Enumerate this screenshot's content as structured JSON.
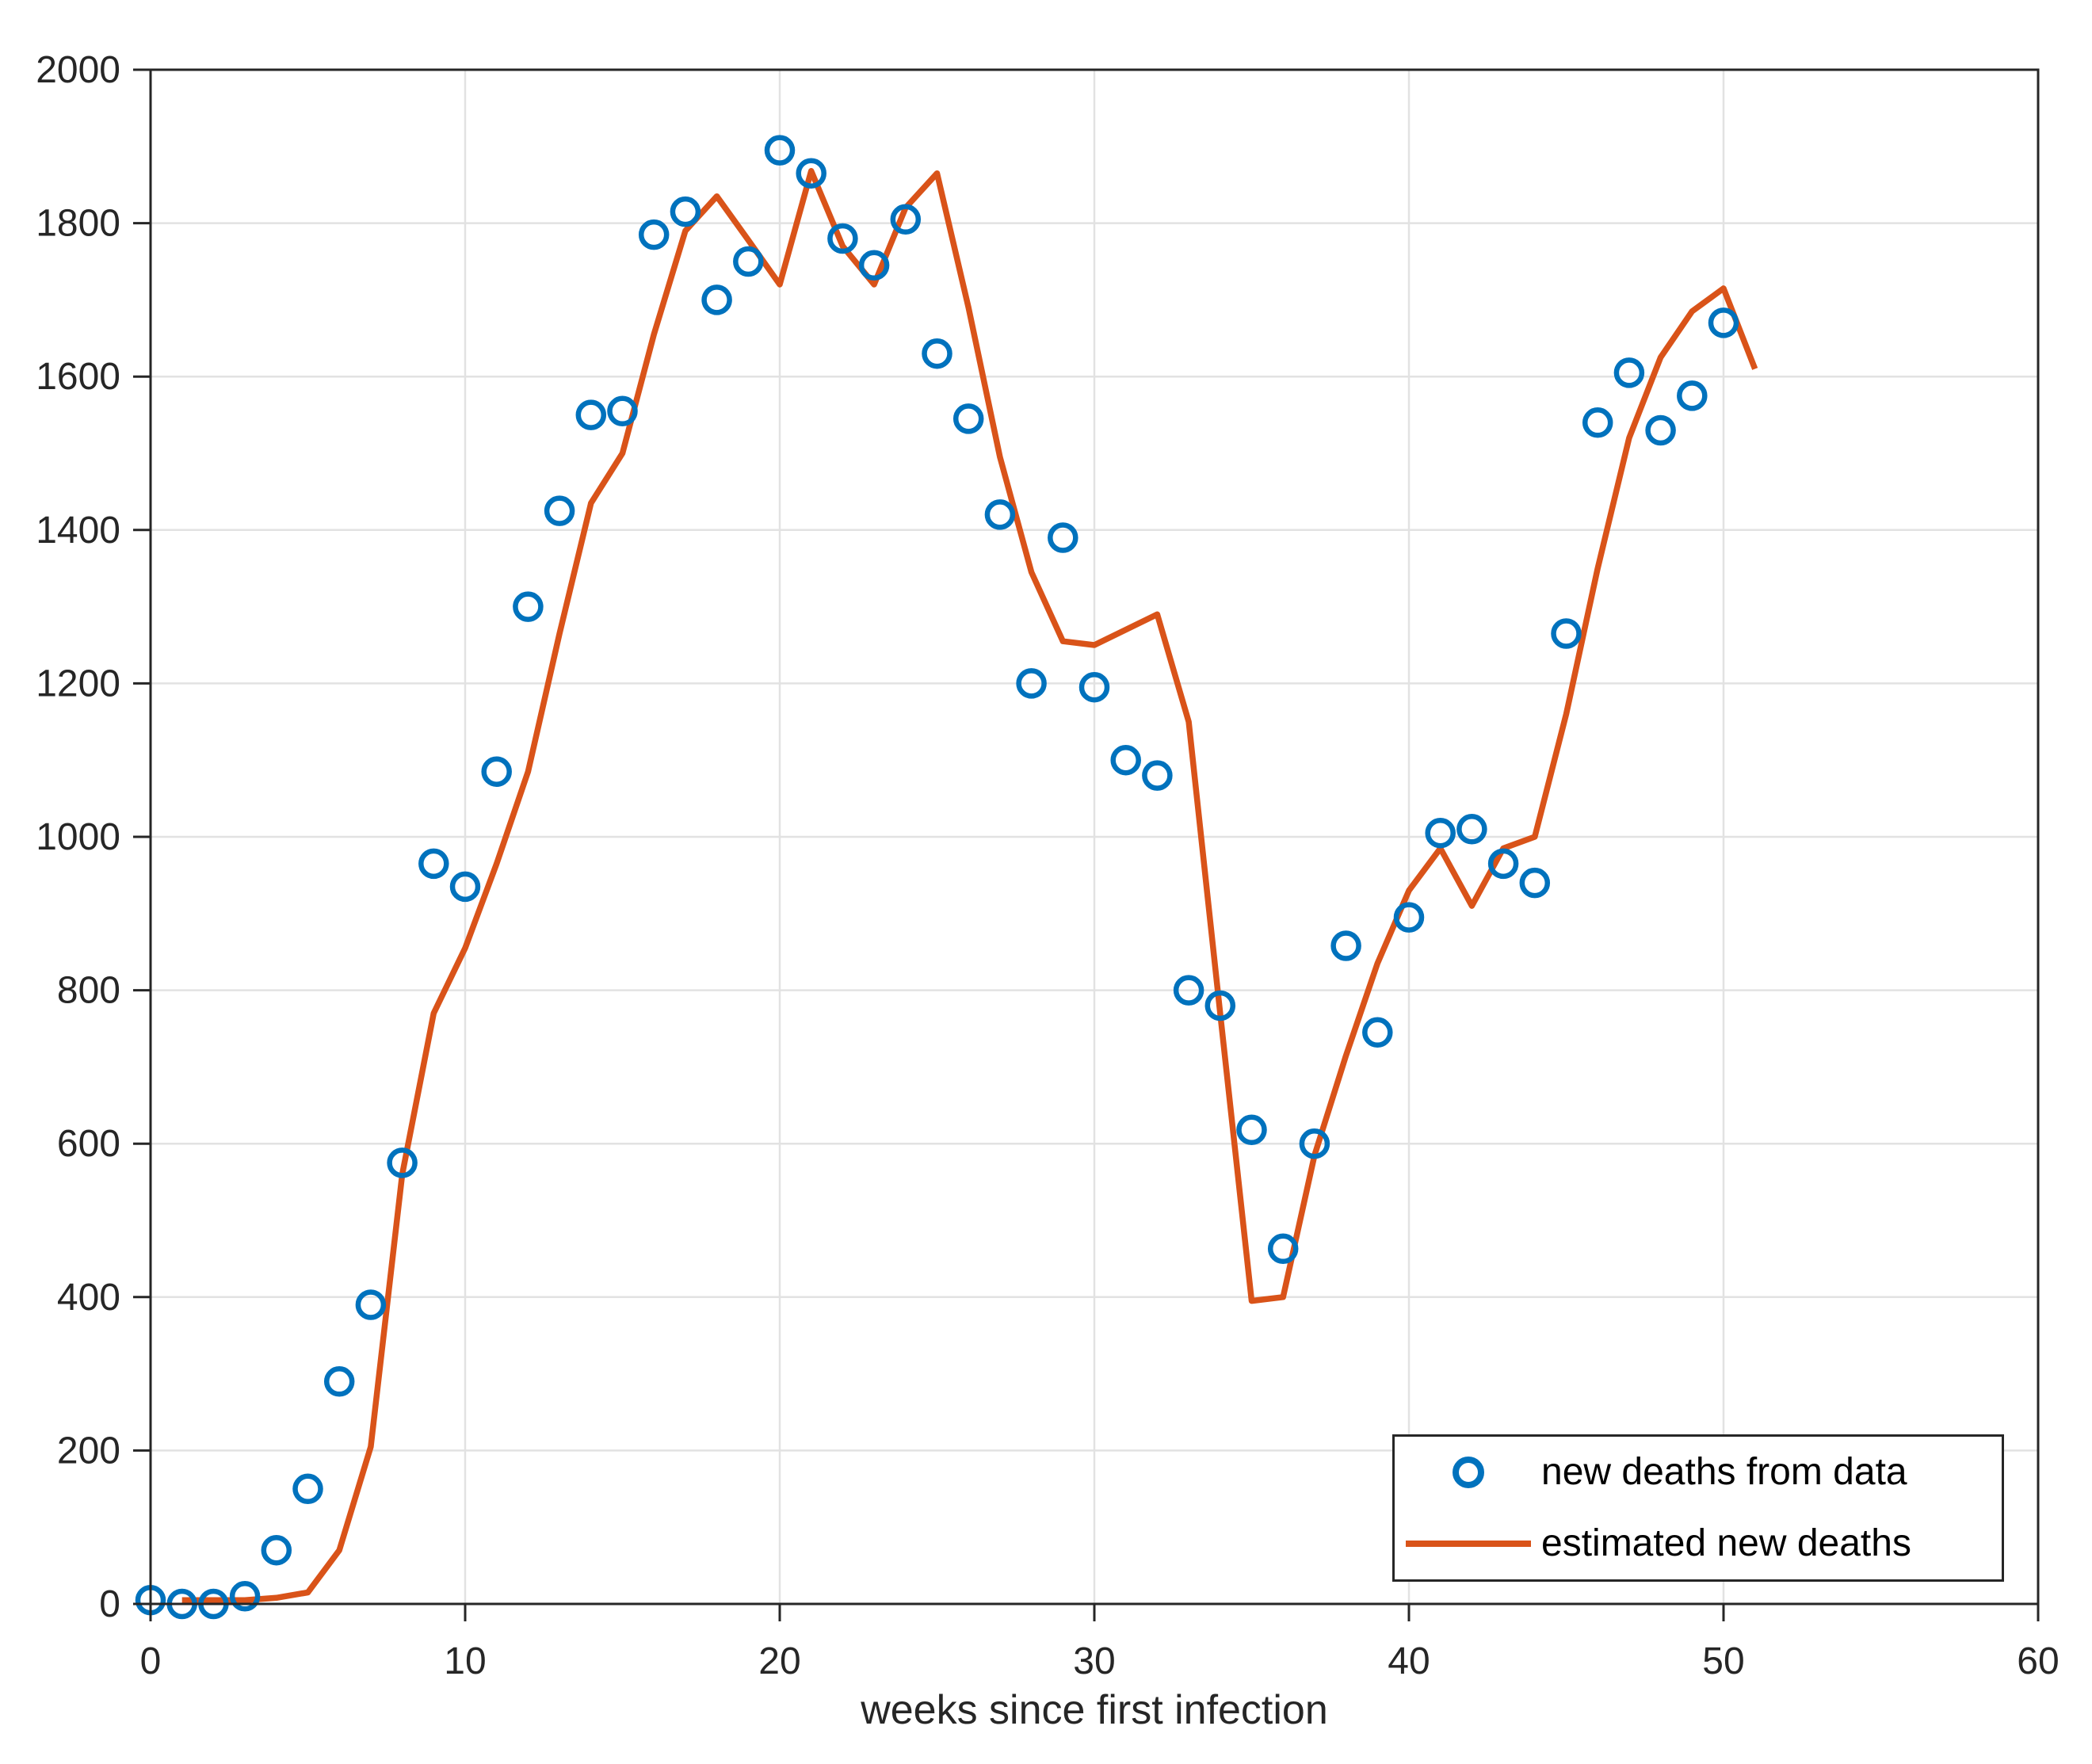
{
  "figure": {
    "background": "#FFFFFF",
    "axis_color": "#262626",
    "grid_color": "#E2E2E2",
    "tick_label_color": "#262626"
  },
  "chart_data": {
    "type": "scatter",
    "title": "",
    "xlabel": "weeks since first infection",
    "ylabel": "",
    "xlim": [
      0,
      60
    ],
    "ylim": [
      0,
      2000
    ],
    "x_ticks": [
      0,
      10,
      20,
      30,
      40,
      50,
      60
    ],
    "y_ticks": [
      0,
      200,
      400,
      600,
      800,
      1000,
      1200,
      1400,
      1600,
      1800,
      2000
    ],
    "grid": true,
    "legend_position": "southeast",
    "series": [
      {
        "name": "new deaths from data",
        "type": "scatter",
        "marker": "circle",
        "color": "#0072BD",
        "x": [
          0,
          1,
          2,
          3,
          4,
          5,
          6,
          7,
          8,
          9,
          10,
          11,
          12,
          13,
          14,
          15,
          16,
          17,
          18,
          19,
          20,
          21,
          22,
          23,
          24,
          25,
          26,
          27,
          28,
          29,
          30,
          31,
          32,
          33,
          34,
          35,
          36,
          37,
          38,
          39,
          40,
          41,
          42,
          43,
          44,
          45,
          46,
          47,
          48,
          49,
          50
        ],
        "y": [
          5,
          0,
          0,
          10,
          70,
          150,
          290,
          390,
          575,
          965,
          935,
          1085,
          1300,
          1425,
          1550,
          1555,
          1785,
          1815,
          1700,
          1750,
          1895,
          1865,
          1780,
          1745,
          1805,
          1630,
          1545,
          1420,
          1200,
          1390,
          1195,
          1100,
          1080,
          800,
          780,
          618,
          463,
          600,
          858,
          745,
          895,
          1005,
          1010,
          965,
          940,
          1265,
          1540,
          1605,
          1530,
          1575,
          1670
        ]
      },
      {
        "name": "estimated new deaths",
        "type": "line",
        "marker": "none",
        "color": "#D95319",
        "x": [
          1,
          2,
          3,
          4,
          5,
          6,
          7,
          8,
          9,
          10,
          11,
          12,
          13,
          14,
          15,
          16,
          17,
          18,
          19,
          20,
          21,
          22,
          23,
          24,
          25,
          26,
          27,
          28,
          29,
          30,
          31,
          32,
          33,
          34,
          35,
          36,
          37,
          38,
          39,
          40,
          41,
          42,
          43,
          44,
          45,
          46,
          47,
          48,
          49,
          50,
          51
        ],
        "y": [
          5,
          5,
          5,
          8,
          15,
          70,
          205,
          560,
          770,
          855,
          965,
          1085,
          1265,
          1435,
          1500,
          1655,
          1790,
          1835,
          1778,
          1720,
          1868,
          1770,
          1720,
          1820,
          1865,
          1690,
          1495,
          1345,
          1255,
          1250,
          1270,
          1290,
          1150,
          770,
          395,
          400,
          585,
          715,
          835,
          930,
          985,
          910,
          985,
          1000,
          1160,
          1350,
          1520,
          1625,
          1685,
          1715,
          1610
        ]
      }
    ]
  },
  "legend": {
    "items": [
      {
        "label": "new deaths from data",
        "swatch": "circle-marker",
        "color": "#0072BD"
      },
      {
        "label": "estimated new deaths",
        "swatch": "line",
        "color": "#D95319"
      }
    ]
  }
}
